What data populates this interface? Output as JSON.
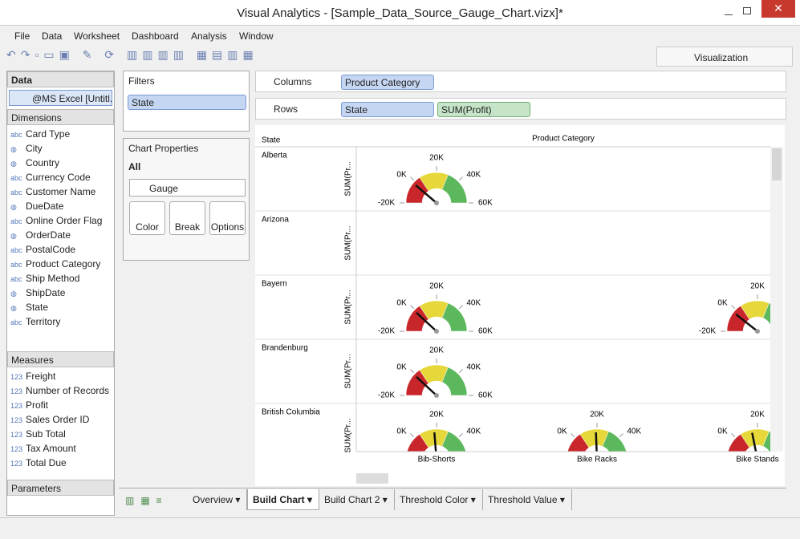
{
  "window_title": "Visual Analytics - [Sample_Data_Source_Gauge_Chart.vizx]*",
  "menu": [
    "File",
    "Data",
    "Worksheet",
    "Dashboard",
    "Analysis",
    "Window"
  ],
  "toolbar_tab": "Visualization",
  "data_panel": {
    "title": "Data",
    "source": "@MS Excel [Untitl...",
    "dimensions_title": "Dimensions",
    "dimensions": [
      {
        "icon": "abc",
        "name": "Card Type"
      },
      {
        "name": "City"
      },
      {
        "name": "Country"
      },
      {
        "icon": "abc",
        "name": "Currency Code"
      },
      {
        "icon": "abc",
        "name": "Customer Name"
      },
      {
        "name": "DueDate"
      },
      {
        "icon": "abc",
        "name": "Online Order Flag"
      },
      {
        "name": "OrderDate"
      },
      {
        "icon": "abc",
        "name": "PostalCode"
      },
      {
        "icon": "abc",
        "name": "Product Category"
      },
      {
        "icon": "abc",
        "name": "Ship Method"
      },
      {
        "name": "ShipDate"
      },
      {
        "name": "State"
      },
      {
        "icon": "abc",
        "name": "Territory"
      }
    ],
    "measures_title": "Measures",
    "measures": [
      {
        "icon": "123",
        "name": "Freight"
      },
      {
        "icon": "123",
        "name": "Number of Records"
      },
      {
        "icon": "123",
        "name": "Profit"
      },
      {
        "icon": "123",
        "name": "Sales Order ID"
      },
      {
        "icon": "123",
        "name": "Sub Total"
      },
      {
        "icon": "123",
        "name": "Tax Amount"
      },
      {
        "icon": "123",
        "name": "Total Due"
      }
    ],
    "parameters_title": "Parameters"
  },
  "filters": {
    "title": "Filters",
    "items": [
      "State"
    ]
  },
  "chart_properties": {
    "title": "Chart Properties",
    "scope": "All",
    "chart_type": "Gauge",
    "buttons": [
      "Color",
      "Break",
      "Options"
    ]
  },
  "shelves": {
    "columns_label": "Columns",
    "columns": [
      "Product Category"
    ],
    "rows_label": "Rows",
    "rows": [
      "State",
      "SUM(Profit)"
    ]
  },
  "chart_data": {
    "type": "gauge",
    "row_header": "State",
    "column_header": "Product Category",
    "axis_label": "SUM(Pr...",
    "rows": [
      "Alberta",
      "Arizona",
      "Bayern",
      "Brandenburg",
      "British Columbia"
    ],
    "categories": [
      "Bib-Shorts",
      "Bike Racks",
      "Bike Stands"
    ],
    "ylim": [
      -20000,
      60000
    ],
    "yticks": [
      {
        "value": -20000,
        "label": "-20K"
      },
      {
        "value": 0,
        "label": "0K"
      },
      {
        "value": 20000,
        "label": "20K"
      },
      {
        "value": 40000,
        "label": "40K"
      },
      {
        "value": 60000,
        "label": "60K"
      }
    ],
    "bands": [
      {
        "from": -20000,
        "to": 5000,
        "color": "#c8262a"
      },
      {
        "from": 5000,
        "to": 30000,
        "color": "#e6d83a"
      },
      {
        "from": 30000,
        "to": 60000,
        "color": "#5cb85c"
      }
    ],
    "series": [
      {
        "name": "Alberta",
        "values": [
          -2000,
          null,
          null
        ]
      },
      {
        "name": "Arizona",
        "values": [
          null,
          null,
          null
        ]
      },
      {
        "name": "Bayern",
        "values": [
          -1000,
          null,
          -3000
        ]
      },
      {
        "name": "Brandenburg",
        "values": [
          -1000,
          null,
          null
        ]
      },
      {
        "name": "British Columbia",
        "values": [
          18000,
          19000,
          15000
        ]
      }
    ]
  },
  "tabs": [
    "Overview",
    "Build Chart",
    "Build Chart 2",
    "Threshold Color",
    "Threshold Value"
  ],
  "active_tab": 1
}
